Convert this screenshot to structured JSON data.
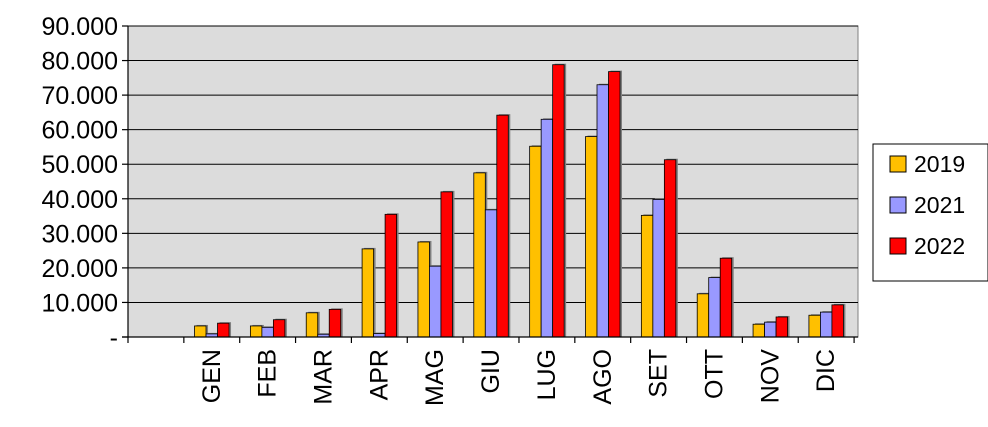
{
  "chart_data": {
    "type": "bar",
    "categories": [
      "GEN",
      "FEB",
      "MAR",
      "APR",
      "MAG",
      "GIU",
      "LUG",
      "AGO",
      "SET",
      "OTT",
      "NOV",
      "DIC"
    ],
    "series": [
      {
        "name": "2019",
        "color": "#ffc000",
        "values": [
          3200,
          3200,
          7000,
          25500,
          27500,
          47500,
          55200,
          58000,
          35200,
          12500,
          3700,
          6300
        ]
      },
      {
        "name": "2021",
        "color": "#9999ff",
        "values": [
          900,
          2800,
          800,
          1000,
          20500,
          36800,
          63000,
          73000,
          39800,
          17200,
          4300,
          7200
        ]
      },
      {
        "name": "2022",
        "color": "#ff0000",
        "values": [
          4000,
          5000,
          8000,
          35500,
          42000,
          64200,
          78800,
          76800,
          51300,
          22800,
          5800,
          9300
        ]
      }
    ],
    "y_tick_labels": [
      "-",
      "10.000",
      "20.000",
      "30.000",
      "40.000",
      "50.000",
      "60.000",
      "70.000",
      "80.000",
      "90.000"
    ],
    "ylim": [
      0,
      90000
    ],
    "title": "",
    "xlabel": "",
    "ylabel": "",
    "grid": "horizontal",
    "plot_background": "#dcdcdc",
    "legend_position": "right"
  }
}
